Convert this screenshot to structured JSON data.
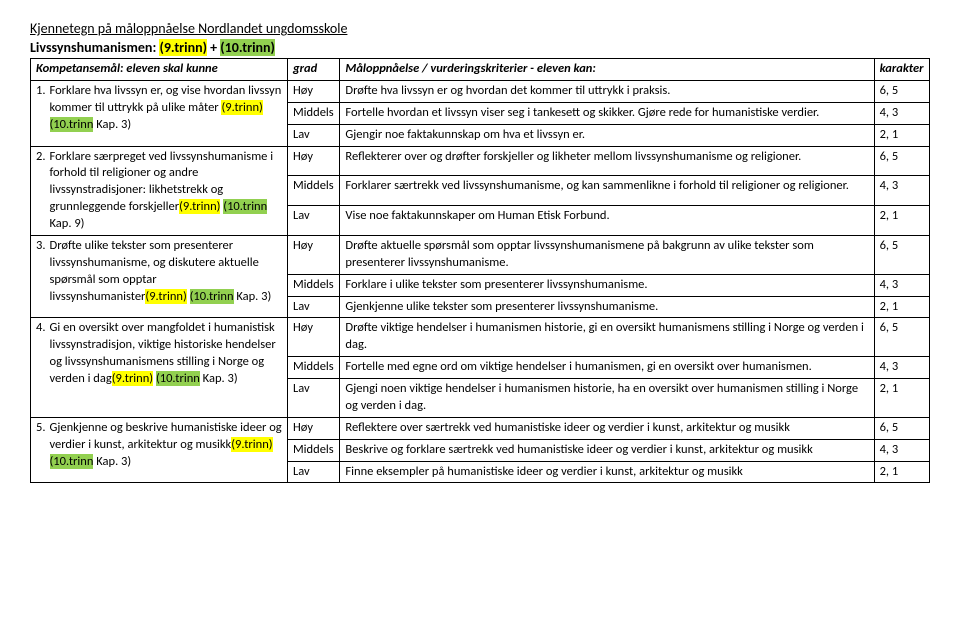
{
  "header": {
    "title": "Kjennetegn på måloppnåelse Nordlandet ungdomsskole",
    "subtitle_plain": "Livssynshumanismen: ",
    "subtitle_y": "(9.trinn)",
    "subtitle_plus": " + ",
    "subtitle_g": "(10.trinn)"
  },
  "table_headers": {
    "goal": "Kompetansemål: eleven skal kunne",
    "grad": "grad",
    "crit": "Måloppnåelse / vurderingskriterier - eleven kan:",
    "kar": "karakter"
  },
  "levels": {
    "h": "Høy",
    "m": "Middels",
    "l": "Lav"
  },
  "scores": {
    "h": "6, 5",
    "m": "4, 3",
    "l": "2, 1"
  },
  "goals": [
    {
      "num": "1.",
      "pre": "Forklare hva livssyn er, og vise hvordan livssyn kommer til uttrykk på ulike måter ",
      "y": "(9.trinn)",
      "g": "(10.trinn",
      "tail": " Kap. 3)",
      "h": "Drøfte hva livssyn er og hvordan det kommer til uttrykk i praksis.",
      "m": "Fortelle hvordan et livssyn viser seg i tankesett og skikker. Gjøre rede for humanistiske verdier.",
      "l": "Gjengir noe faktakunnskap om hva et livssyn er."
    },
    {
      "num": "2.",
      "pre": "Forklare særpreget ved livssynshumanisme i forhold til religioner og andre livssynstradisjoner: likhetstrekk og grunnleggende forskjeller",
      "y": "(9.trinn)",
      "g": "(10.trinn",
      "tail": " Kap. 9)",
      "h": "Reflekterer over og drøfter forskjeller og likheter mellom livssynshumanisme og religioner.",
      "m": "Forklarer særtrekk ved livssynshumanisme, og kan sammenlikne i forhold til religioner og religioner.",
      "l": "Vise noe faktakunnskaper om Human Etisk Forbund."
    },
    {
      "num": "3.",
      "pre": "Drøfte ulike tekster som presenterer livssynshumanisme, og diskutere aktuelle spørsmål som opptar livssynshumanister",
      "y": "(9.trinn)",
      "g": "(10.trinn",
      "tail": " Kap. 3)",
      "h": "Drøfte aktuelle spørsmål som opptar livssynshumanismene på bakgrunn av ulike tekster som presenterer livssynshumanisme.",
      "m": "Forklare i ulike tekster som presenterer livssynshumanisme.",
      "l": "Gjenkjenne ulike tekster som presenterer livssynshumanisme."
    },
    {
      "num": "4.",
      "pre": "Gi en oversikt over mangfoldet i humanistisk livssynstradisjon, viktige historiske hendelser og livssynshumanismens stilling i Norge og verden i dag",
      "y": "(9.trinn)",
      "g": "(10.trinn",
      "tail": " Kap. 3)",
      "h": "Drøfte viktige hendelser i humanismen historie, gi en oversikt humanismens stilling i Norge og verden i dag.",
      "m": "Fortelle med egne ord om viktige hendelser i humanismen, gi en oversikt over humanismen.",
      "l": "Gjengi noen viktige hendelser i humanismen historie, ha en oversikt over humanismen stilling i Norge og verden i dag."
    },
    {
      "num": "5.",
      "pre": "Gjenkjenne og beskrive humanistiske ideer og verdier i kunst, arkitektur og musikk",
      "y": "(9.trinn)",
      "g": "(10.trinn",
      "tail": " Kap. 3)",
      "h": "Reflektere over særtrekk ved humanistiske ideer og verdier i kunst, arkitektur og musikk",
      "m": "Beskrive og forklare særtrekk ved humanistiske ideer og verdier i kunst, arkitektur og musikk",
      "l": "Finne eksempler på humanistiske ideer og verdier i kunst, arkitektur og musikk"
    }
  ]
}
